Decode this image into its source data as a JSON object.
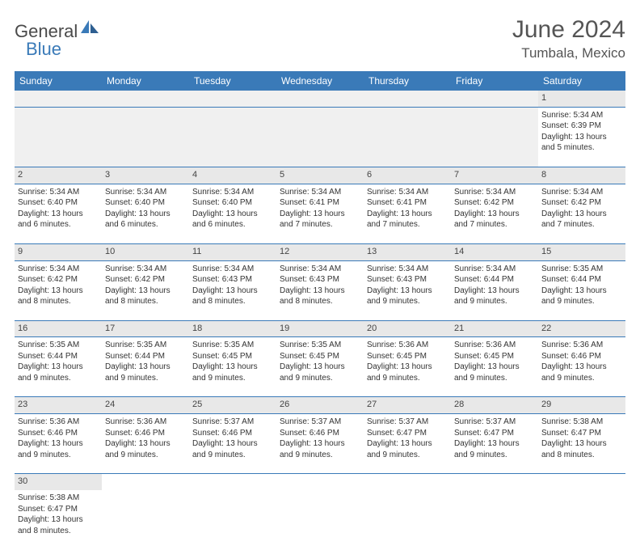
{
  "logo": {
    "text1": "General",
    "text2": "Blue"
  },
  "title": "June 2024",
  "location": "Tumbala, Mexico",
  "colors": {
    "header_bg": "#3a7ab8",
    "header_fg": "#ffffff",
    "day_header_bg": "#e8e8e8",
    "border": "#3a7ab8"
  },
  "weekdays": [
    "Sunday",
    "Monday",
    "Tuesday",
    "Wednesday",
    "Thursday",
    "Friday",
    "Saturday"
  ],
  "weeks": [
    [
      null,
      null,
      null,
      null,
      null,
      null,
      {
        "n": "1",
        "sr": "Sunrise: 5:34 AM",
        "ss": "Sunset: 6:39 PM",
        "dl": "Daylight: 13 hours and 5 minutes."
      }
    ],
    [
      {
        "n": "2",
        "sr": "Sunrise: 5:34 AM",
        "ss": "Sunset: 6:40 PM",
        "dl": "Daylight: 13 hours and 6 minutes."
      },
      {
        "n": "3",
        "sr": "Sunrise: 5:34 AM",
        "ss": "Sunset: 6:40 PM",
        "dl": "Daylight: 13 hours and 6 minutes."
      },
      {
        "n": "4",
        "sr": "Sunrise: 5:34 AM",
        "ss": "Sunset: 6:40 PM",
        "dl": "Daylight: 13 hours and 6 minutes."
      },
      {
        "n": "5",
        "sr": "Sunrise: 5:34 AM",
        "ss": "Sunset: 6:41 PM",
        "dl": "Daylight: 13 hours and 7 minutes."
      },
      {
        "n": "6",
        "sr": "Sunrise: 5:34 AM",
        "ss": "Sunset: 6:41 PM",
        "dl": "Daylight: 13 hours and 7 minutes."
      },
      {
        "n": "7",
        "sr": "Sunrise: 5:34 AM",
        "ss": "Sunset: 6:42 PM",
        "dl": "Daylight: 13 hours and 7 minutes."
      },
      {
        "n": "8",
        "sr": "Sunrise: 5:34 AM",
        "ss": "Sunset: 6:42 PM",
        "dl": "Daylight: 13 hours and 7 minutes."
      }
    ],
    [
      {
        "n": "9",
        "sr": "Sunrise: 5:34 AM",
        "ss": "Sunset: 6:42 PM",
        "dl": "Daylight: 13 hours and 8 minutes."
      },
      {
        "n": "10",
        "sr": "Sunrise: 5:34 AM",
        "ss": "Sunset: 6:42 PM",
        "dl": "Daylight: 13 hours and 8 minutes."
      },
      {
        "n": "11",
        "sr": "Sunrise: 5:34 AM",
        "ss": "Sunset: 6:43 PM",
        "dl": "Daylight: 13 hours and 8 minutes."
      },
      {
        "n": "12",
        "sr": "Sunrise: 5:34 AM",
        "ss": "Sunset: 6:43 PM",
        "dl": "Daylight: 13 hours and 8 minutes."
      },
      {
        "n": "13",
        "sr": "Sunrise: 5:34 AM",
        "ss": "Sunset: 6:43 PM",
        "dl": "Daylight: 13 hours and 9 minutes."
      },
      {
        "n": "14",
        "sr": "Sunrise: 5:34 AM",
        "ss": "Sunset: 6:44 PM",
        "dl": "Daylight: 13 hours and 9 minutes."
      },
      {
        "n": "15",
        "sr": "Sunrise: 5:35 AM",
        "ss": "Sunset: 6:44 PM",
        "dl": "Daylight: 13 hours and 9 minutes."
      }
    ],
    [
      {
        "n": "16",
        "sr": "Sunrise: 5:35 AM",
        "ss": "Sunset: 6:44 PM",
        "dl": "Daylight: 13 hours and 9 minutes."
      },
      {
        "n": "17",
        "sr": "Sunrise: 5:35 AM",
        "ss": "Sunset: 6:44 PM",
        "dl": "Daylight: 13 hours and 9 minutes."
      },
      {
        "n": "18",
        "sr": "Sunrise: 5:35 AM",
        "ss": "Sunset: 6:45 PM",
        "dl": "Daylight: 13 hours and 9 minutes."
      },
      {
        "n": "19",
        "sr": "Sunrise: 5:35 AM",
        "ss": "Sunset: 6:45 PM",
        "dl": "Daylight: 13 hours and 9 minutes."
      },
      {
        "n": "20",
        "sr": "Sunrise: 5:36 AM",
        "ss": "Sunset: 6:45 PM",
        "dl": "Daylight: 13 hours and 9 minutes."
      },
      {
        "n": "21",
        "sr": "Sunrise: 5:36 AM",
        "ss": "Sunset: 6:45 PM",
        "dl": "Daylight: 13 hours and 9 minutes."
      },
      {
        "n": "22",
        "sr": "Sunrise: 5:36 AM",
        "ss": "Sunset: 6:46 PM",
        "dl": "Daylight: 13 hours and 9 minutes."
      }
    ],
    [
      {
        "n": "23",
        "sr": "Sunrise: 5:36 AM",
        "ss": "Sunset: 6:46 PM",
        "dl": "Daylight: 13 hours and 9 minutes."
      },
      {
        "n": "24",
        "sr": "Sunrise: 5:36 AM",
        "ss": "Sunset: 6:46 PM",
        "dl": "Daylight: 13 hours and 9 minutes."
      },
      {
        "n": "25",
        "sr": "Sunrise: 5:37 AM",
        "ss": "Sunset: 6:46 PM",
        "dl": "Daylight: 13 hours and 9 minutes."
      },
      {
        "n": "26",
        "sr": "Sunrise: 5:37 AM",
        "ss": "Sunset: 6:46 PM",
        "dl": "Daylight: 13 hours and 9 minutes."
      },
      {
        "n": "27",
        "sr": "Sunrise: 5:37 AM",
        "ss": "Sunset: 6:47 PM",
        "dl": "Daylight: 13 hours and 9 minutes."
      },
      {
        "n": "28",
        "sr": "Sunrise: 5:37 AM",
        "ss": "Sunset: 6:47 PM",
        "dl": "Daylight: 13 hours and 9 minutes."
      },
      {
        "n": "29",
        "sr": "Sunrise: 5:38 AM",
        "ss": "Sunset: 6:47 PM",
        "dl": "Daylight: 13 hours and 8 minutes."
      }
    ],
    [
      {
        "n": "30",
        "sr": "Sunrise: 5:38 AM",
        "ss": "Sunset: 6:47 PM",
        "dl": "Daylight: 13 hours and 8 minutes."
      },
      null,
      null,
      null,
      null,
      null,
      null
    ]
  ]
}
